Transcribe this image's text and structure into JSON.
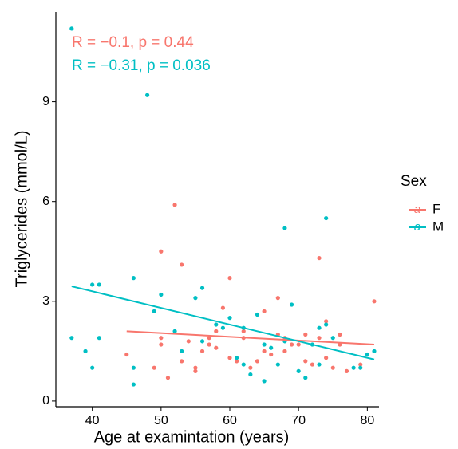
{
  "chart_data": {
    "type": "scatter",
    "xlabel": "Age at examintation (years)",
    "ylabel": "Triglycerides (mmol/L)",
    "xlim": [
      34.7,
      81.7
    ],
    "ylim": [
      -0.17,
      11.7
    ],
    "xticks": [
      40,
      50,
      60,
      70,
      80
    ],
    "yticks": [
      0,
      3,
      6,
      9
    ],
    "grid": false,
    "legend_title": "Sex",
    "legend_glyph": "a",
    "series": [
      {
        "name": "F",
        "color": "#F8766D",
        "annotation": "R = −0.1, p = 0.44",
        "fit": {
          "x": [
            45,
            81
          ],
          "y": [
            2.1,
            1.7
          ]
        },
        "x": [
          45,
          49,
          50,
          50,
          50,
          51,
          52,
          53,
          53,
          54,
          55,
          55,
          56,
          57,
          57,
          58,
          58,
          59,
          60,
          60,
          61,
          62,
          62,
          63,
          64,
          65,
          65,
          66,
          67,
          67,
          68,
          68,
          69,
          70,
          71,
          71,
          72,
          73,
          73,
          74,
          74,
          75,
          76,
          76,
          77,
          81,
          79
        ],
        "y": [
          1.4,
          1.0,
          4.5,
          1.9,
          1.7,
          0.7,
          5.9,
          4.1,
          1.2,
          1.8,
          1.0,
          0.9,
          1.5,
          1.9,
          1.7,
          2.1,
          1.6,
          2.8,
          3.7,
          1.3,
          1.2,
          2.1,
          1.9,
          1.0,
          1.2,
          2.7,
          1.5,
          1.4,
          3.1,
          2.0,
          1.9,
          1.5,
          1.7,
          1.7,
          2.0,
          1.2,
          1.1,
          4.3,
          1.9,
          2.4,
          1.3,
          1.0,
          2.0,
          1.7,
          0.9,
          3.0,
          1.1
        ]
      },
      {
        "name": "M",
        "color": "#00BFC4",
        "annotation": "R = −0.31, p = 0.036",
        "fit": {
          "x": [
            37,
            81
          ],
          "y": [
            3.45,
            1.25
          ]
        },
        "x": [
          37,
          37,
          39,
          40,
          40,
          41,
          41,
          46,
          46,
          46,
          48,
          49,
          50,
          52,
          53,
          55,
          56,
          56,
          58,
          59,
          60,
          61,
          62,
          62,
          63,
          64,
          65,
          65,
          66,
          67,
          68,
          68,
          69,
          70,
          71,
          72,
          73,
          73,
          74,
          74,
          75,
          78,
          79,
          80,
          81
        ],
        "y": [
          11.2,
          1.9,
          1.5,
          3.5,
          1.0,
          3.5,
          1.9,
          3.7,
          1.0,
          0.5,
          9.2,
          2.7,
          3.2,
          2.1,
          1.5,
          3.1,
          3.4,
          1.8,
          2.3,
          2.2,
          2.5,
          1.3,
          2.2,
          1.1,
          0.8,
          2.6,
          1.7,
          0.6,
          1.6,
          1.1,
          5.2,
          1.8,
          2.9,
          0.9,
          0.7,
          1.7,
          2.2,
          1.1,
          5.5,
          2.3,
          1.9,
          1.0,
          1.0,
          1.4,
          1.5
        ]
      }
    ]
  }
}
